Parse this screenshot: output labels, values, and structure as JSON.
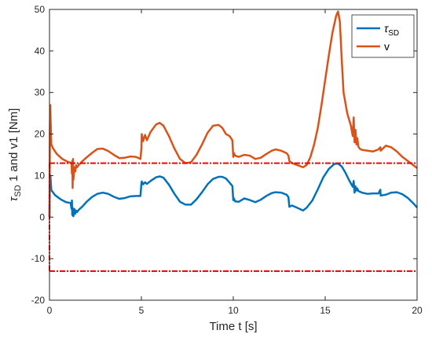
{
  "chart_data": {
    "type": "line",
    "xlabel": "Time t [s]",
    "ylabel_parts": [
      "τ",
      "SD",
      " 1 and v1 [Nm]"
    ],
    "xlim": [
      0,
      20
    ],
    "ylim": [
      -20,
      50
    ],
    "xticks": [
      0,
      5,
      10,
      15,
      20
    ],
    "yticks": [
      -20,
      -10,
      0,
      10,
      20,
      30,
      40,
      50
    ],
    "grid": false,
    "legend_position": "top-right",
    "series": [
      {
        "name_parts": [
          "τ",
          "SD"
        ],
        "color": "#0072BD",
        "x": [
          0,
          0.02,
          0.05,
          0.1,
          0.3,
          0.6,
          0.9,
          1.15,
          1.2,
          1.22,
          1.24,
          1.26,
          1.3,
          1.35,
          1.4,
          1.45,
          1.5,
          1.6,
          1.8,
          2.0,
          2.3,
          2.6,
          2.9,
          3.2,
          3.5,
          3.8,
          4.1,
          4.4,
          4.7,
          4.95,
          5.0,
          5.02,
          5.1,
          5.2,
          5.3,
          5.5,
          5.8,
          6.0,
          6.2,
          6.5,
          6.8,
          7.1,
          7.4,
          7.7,
          8.0,
          8.3,
          8.6,
          8.9,
          9.2,
          9.4,
          9.6,
          9.8,
          9.95,
          10.0,
          10.02,
          10.1,
          10.3,
          10.6,
          10.9,
          11.2,
          11.5,
          11.8,
          12.1,
          12.3,
          12.6,
          12.9,
          13.0,
          13.05,
          13.2,
          13.5,
          13.8,
          14.0,
          14.3,
          14.6,
          14.9,
          15.2,
          15.5,
          15.7,
          15.9,
          16.1,
          16.3,
          16.5,
          16.55,
          16.6,
          16.65,
          16.7,
          16.75,
          16.8,
          17.0,
          17.3,
          17.6,
          17.9,
          18.0,
          18.02,
          18.3,
          18.6,
          18.9,
          19.2,
          19.5,
          19.8,
          20.0
        ],
        "values": [
          0,
          8,
          10,
          6.5,
          5.3,
          4.3,
          3.6,
          3.4,
          2.0,
          4.0,
          0.5,
          2.2,
          0.2,
          2.0,
          0.8,
          1.6,
          1.2,
          1.8,
          2.6,
          3.6,
          4.8,
          5.6,
          5.9,
          5.6,
          4.9,
          4.4,
          4.6,
          5.0,
          5.1,
          5.1,
          8.0,
          8.6,
          7.9,
          8.4,
          8.0,
          8.7,
          9.6,
          9.8,
          9.5,
          7.8,
          5.6,
          3.7,
          3.0,
          3.0,
          4.3,
          6.0,
          7.9,
          9.2,
          9.7,
          9.7,
          9.3,
          8.3,
          7.5,
          4.1,
          4.6,
          3.8,
          3.7,
          4.5,
          4.1,
          3.6,
          4.2,
          5.1,
          5.8,
          6.0,
          5.9,
          5.4,
          4.8,
          2.5,
          2.8,
          2.2,
          1.6,
          2.3,
          4.0,
          6.7,
          9.6,
          11.6,
          12.8,
          12.9,
          12.2,
          10.7,
          8.9,
          7.3,
          8.7,
          5.9,
          7.4,
          6.4,
          6.9,
          6.3,
          5.9,
          5.6,
          5.7,
          5.7,
          6.6,
          5.2,
          5.4,
          5.9,
          6.0,
          5.5,
          4.6,
          3.3,
          2.3
        ]
      },
      {
        "name_parts": [
          "v"
        ],
        "color": "#D95319",
        "x": [
          0,
          0.02,
          0.04,
          0.07,
          0.1,
          0.2,
          0.4,
          0.7,
          1.0,
          1.2,
          1.22,
          1.24,
          1.26,
          1.28,
          1.3,
          1.35,
          1.4,
          1.45,
          1.5,
          1.6,
          1.8,
          2.0,
          2.3,
          2.6,
          2.9,
          3.2,
          3.5,
          3.8,
          4.1,
          4.4,
          4.7,
          4.95,
          5.0,
          5.02,
          5.1,
          5.2,
          5.3,
          5.5,
          5.8,
          6.0,
          6.2,
          6.5,
          6.8,
          7.1,
          7.4,
          7.7,
          8.0,
          8.3,
          8.6,
          8.9,
          9.2,
          9.4,
          9.6,
          9.8,
          9.95,
          10.0,
          10.02,
          10.1,
          10.3,
          10.6,
          10.9,
          11.2,
          11.5,
          11.8,
          12.1,
          12.3,
          12.6,
          12.9,
          13.0,
          13.05,
          13.2,
          13.5,
          13.8,
          14.0,
          14.2,
          14.4,
          14.6,
          14.8,
          15.0,
          15.2,
          15.4,
          15.6,
          15.7,
          15.8,
          15.9,
          16.0,
          16.2,
          16.4,
          16.5,
          16.55,
          16.6,
          16.65,
          16.7,
          16.75,
          16.8,
          16.9,
          17.0,
          17.3,
          17.6,
          17.9,
          18.0,
          18.02,
          18.3,
          18.6,
          18.9,
          19.2,
          19.5,
          19.8,
          20.0
        ],
        "values": [
          0,
          20,
          27,
          22,
          17.5,
          16.5,
          15.2,
          14.0,
          13.3,
          13.0,
          10.5,
          13.5,
          7.0,
          14.0,
          9.0,
          12.0,
          11.0,
          12.5,
          12.0,
          12.6,
          13.5,
          14.3,
          15.4,
          16.4,
          16.5,
          15.9,
          15.0,
          14.2,
          14.3,
          14.6,
          14.5,
          14.0,
          16.5,
          20.0,
          18.3,
          19.8,
          18.5,
          20.5,
          22.3,
          22.7,
          22.0,
          19.5,
          16.5,
          14.0,
          13.0,
          13.2,
          15.0,
          17.5,
          20.3,
          22.0,
          22.2,
          21.5,
          20.0,
          19.5,
          18.5,
          14.5,
          15.5,
          14.8,
          14.5,
          15.0,
          14.8,
          14.0,
          14.3,
          15.2,
          16.0,
          16.3,
          16.0,
          15.4,
          14.8,
          13.5,
          13.0,
          12.5,
          12.0,
          12.6,
          14.5,
          17.5,
          21.5,
          27.0,
          33.0,
          39.0,
          44.5,
          48.5,
          49.5,
          47.0,
          38.0,
          30.0,
          25.0,
          22.0,
          19.5,
          24.0,
          18.0,
          21.0,
          17.5,
          19.0,
          17.0,
          16.4,
          16.2,
          16.0,
          15.8,
          16.3,
          16.8,
          16.0,
          17.2,
          16.8,
          15.8,
          14.5,
          13.5,
          12.5,
          11.8
        ]
      }
    ],
    "bounds": {
      "color": "#FF0000",
      "upper": 13,
      "lower": -13,
      "x_start": 0,
      "x_end": 20
    }
  }
}
